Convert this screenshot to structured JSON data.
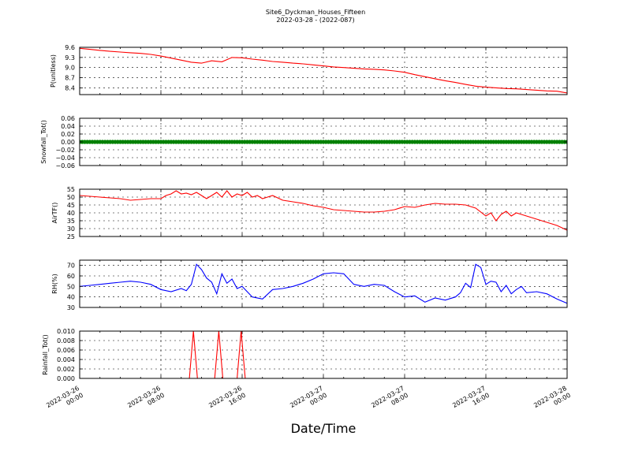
{
  "title": "Site6_Dyckman_Houses_Fifteen",
  "subtitle": "2022-03-28 - (2022-087)",
  "xlabel": "Date/Time",
  "x_ticks": [
    "2022-03-26\n00:00",
    "2022-03-26\n08:00",
    "2022-03-26\n16:00",
    "2022-03-27\n00:00",
    "2022-03-27\n08:00",
    "2022-03-27\n16:00",
    "2022-03-28\n00:00"
  ],
  "chart_data": [
    {
      "type": "line",
      "ylabel": "P(unitless)",
      "color": "#ff0000",
      "ylim": [
        8.2,
        9.6
      ],
      "yticks": [
        8.4,
        8.7,
        9.0,
        9.3,
        9.6
      ],
      "ytick_labels": [
        "8.4",
        "8.7",
        "9.0",
        "9.3",
        "9.6"
      ],
      "xlim_hours": [
        0,
        48
      ],
      "x_hours": [
        0,
        1,
        2,
        3,
        4,
        5,
        6,
        7,
        8,
        9,
        10,
        11,
        12,
        13,
        14,
        15,
        16,
        17,
        18,
        19,
        20,
        21,
        22,
        23,
        24,
        25,
        26,
        27,
        28,
        29,
        30,
        31,
        32,
        33,
        34,
        35,
        36,
        37,
        38,
        39,
        40,
        41,
        42,
        43,
        44,
        45,
        46,
        47,
        48
      ],
      "values": [
        9.57,
        9.54,
        9.51,
        9.48,
        9.46,
        9.44,
        9.42,
        9.39,
        9.34,
        9.28,
        9.22,
        9.16,
        9.13,
        9.2,
        9.17,
        9.3,
        9.29,
        9.25,
        9.22,
        9.18,
        9.16,
        9.13,
        9.11,
        9.08,
        9.05,
        9.02,
        9.0,
        8.98,
        8.96,
        8.95,
        8.93,
        8.9,
        8.86,
        8.79,
        8.73,
        8.67,
        8.61,
        8.56,
        8.5,
        8.45,
        8.42,
        8.4,
        8.38,
        8.37,
        8.35,
        8.33,
        8.31,
        8.3,
        8.25
      ]
    },
    {
      "type": "scatter",
      "ylabel": "Snowfall_Tot()",
      "color": "#008000",
      "ylim": [
        -0.06,
        0.06
      ],
      "yticks": [
        -0.06,
        -0.04,
        -0.02,
        0.0,
        0.02,
        0.04,
        0.06
      ],
      "ytick_labels": [
        "−0.06",
        "−0.04",
        "−0.02",
        "0.00",
        "0.02",
        "0.04",
        "0.06"
      ],
      "xlim_hours": [
        0,
        48
      ],
      "x_range_hours": [
        0,
        48
      ],
      "constant_value": 0.0
    },
    {
      "type": "line",
      "ylabel": "AirTF()",
      "color": "#ff0000",
      "ylim": [
        25,
        55
      ],
      "yticks": [
        25,
        30,
        35,
        40,
        45,
        50,
        55
      ],
      "ytick_labels": [
        "25",
        "30",
        "35",
        "40",
        "45",
        "50",
        "55"
      ],
      "xlim_hours": [
        0,
        48
      ],
      "x_hours": [
        0,
        1,
        2,
        3,
        4,
        5,
        6,
        7,
        8,
        8.5,
        9,
        9.5,
        10,
        10.5,
        11,
        11.5,
        12,
        12.5,
        13,
        13.5,
        14,
        14.5,
        15,
        15.5,
        16,
        16.5,
        17,
        17.5,
        18,
        18.5,
        19,
        20,
        21,
        22,
        23,
        24,
        25,
        26,
        27,
        28,
        29,
        30,
        31,
        32,
        33,
        34,
        35,
        36,
        37,
        38,
        39,
        40,
        40.5,
        41,
        41.5,
        42,
        42.5,
        43,
        43.5,
        44,
        45,
        46,
        47,
        48
      ],
      "values": [
        51,
        50.5,
        50,
        49.5,
        49,
        48,
        48.5,
        49,
        49,
        51,
        52,
        54,
        52,
        52.5,
        51.5,
        53,
        51,
        49,
        51,
        53,
        50,
        54,
        50,
        52,
        51,
        53,
        50,
        51,
        49,
        50,
        51,
        48,
        47,
        46,
        44.5,
        43.5,
        42,
        41.5,
        41,
        40.5,
        40.5,
        41,
        42,
        44,
        43.5,
        45,
        46,
        45.5,
        45.5,
        45,
        43,
        38,
        40,
        35,
        39,
        41,
        38,
        40,
        39,
        38,
        36,
        34,
        32,
        29
      ]
    },
    {
      "type": "line",
      "ylabel": "RH(%)",
      "color": "#0000ff",
      "ylim": [
        30,
        75
      ],
      "yticks": [
        30,
        40,
        50,
        60,
        70
      ],
      "ytick_labels": [
        "30",
        "40",
        "50",
        "60",
        "70"
      ],
      "xlim_hours": [
        0,
        48
      ],
      "x_hours": [
        0,
        1,
        2,
        3,
        4,
        5,
        6,
        7,
        8,
        9,
        10,
        10.5,
        11,
        11.5,
        12,
        12.5,
        13,
        13.5,
        14,
        14.5,
        15,
        15.5,
        16,
        16.5,
        17,
        18,
        19,
        20,
        21,
        22,
        23,
        24,
        25,
        26,
        27,
        28,
        29,
        30,
        31,
        32,
        33,
        34,
        35,
        36,
        37,
        37.5,
        38,
        38.5,
        39,
        39.5,
        40,
        40.5,
        41,
        41.5,
        42,
        42.5,
        43,
        43.5,
        44,
        45,
        46,
        47,
        48
      ],
      "values": [
        50,
        51,
        52,
        53,
        54,
        55,
        54,
        52,
        47,
        45,
        48,
        46,
        52,
        71,
        66,
        58,
        54,
        43,
        62,
        53,
        57,
        48,
        50,
        45,
        40,
        38,
        47,
        48,
        50,
        53,
        57,
        62,
        63,
        62,
        52,
        50,
        52,
        51,
        45,
        40,
        41,
        35,
        39,
        37,
        40,
        44,
        53,
        49,
        71,
        68,
        52,
        55,
        54,
        45,
        51,
        43,
        47,
        50,
        44,
        45,
        43,
        38,
        34
      ]
    },
    {
      "type": "line",
      "ylabel": "Rainfall_Tot()",
      "color": "#ff0000",
      "ylim": [
        0,
        0.01
      ],
      "yticks": [
        0.0,
        0.002,
        0.004,
        0.006,
        0.008,
        0.01
      ],
      "ytick_labels": [
        "0.000",
        "0.002",
        "0.004",
        "0.006",
        "0.008",
        "0.010"
      ],
      "xlim_hours": [
        0,
        48
      ],
      "x_hours": [
        0,
        10.8,
        11.2,
        11.6,
        13.3,
        13.7,
        14.1,
        15.5,
        15.9,
        16.3,
        48
      ],
      "values": [
        0,
        0,
        0.01,
        0,
        0,
        0.01,
        0,
        0,
        0.01,
        0,
        0
      ]
    }
  ]
}
